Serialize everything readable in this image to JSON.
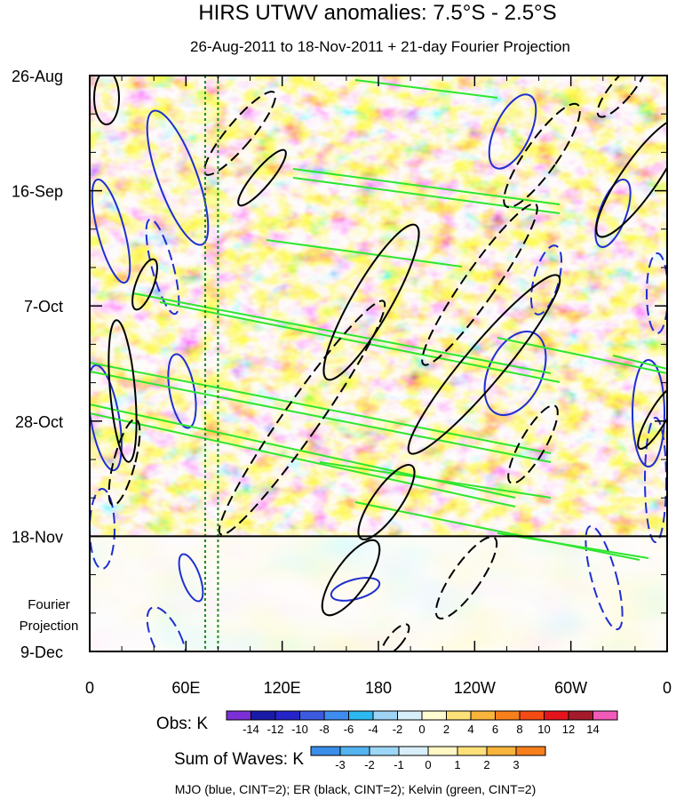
{
  "chart_data": {
    "type": "heatmap",
    "title": "HIRS UTWV anomalies: 7.5°S - 2.5°S",
    "subtitle": "26-Aug-2011 to 18-Nov-2011 + 21-day Fourier Projection",
    "x_ticks": [
      "0",
      "60E",
      "120E",
      "180",
      "120W",
      "60W",
      "0"
    ],
    "x_tick_values": [
      0,
      60,
      120,
      180,
      240,
      300,
      360
    ],
    "xlim": [
      0,
      360
    ],
    "y_ticks": [
      "26-Aug",
      "16-Sep",
      "7-Oct",
      "28-Oct",
      "18-Nov",
      "9-Dec"
    ],
    "y_tick_days": [
      0,
      21,
      42,
      63,
      84,
      105
    ],
    "ylim_days": [
      0,
      105
    ],
    "obs_end_day": 84,
    "projection_label_line1": "Fourier",
    "projection_label_line2": "Projection",
    "reference_longitudes_dotted": [
      72,
      80
    ],
    "obs_colorbar": {
      "label": "Obs: K",
      "levels": [
        "-14",
        "-12",
        "-10",
        "-8",
        "-6",
        "-4",
        "-2",
        "0",
        "2",
        "4",
        "6",
        "8",
        "10",
        "12",
        "14"
      ],
      "colors": [
        "#7b2fd6",
        "#1a1aa8",
        "#2424c8",
        "#3c5ae0",
        "#3f8cf0",
        "#2cb8f0",
        "#9fd3f5",
        "#d6effa",
        "#fffbd0",
        "#fde27a",
        "#f9b43c",
        "#f77f1c",
        "#f54a14",
        "#e4141a",
        "#a31a2a",
        "#f15ab8"
      ]
    },
    "waves_colorbar": {
      "label": "Sum of Waves: K",
      "levels": [
        "-3",
        "-2",
        "-1",
        "0",
        "1",
        "2",
        "3"
      ],
      "colors": [
        "#3a8ee8",
        "#54b4f0",
        "#9ed6f6",
        "#d8eefa",
        "#fff7c4",
        "#fde07a",
        "#f9b43c",
        "#f77f1c"
      ]
    },
    "contours_legend": "MJO (blue, CINT=2); ER (black, CINT=2); Kelvin (green, CINT=2)",
    "series_colors": {
      "mjo": "#1f2fd0",
      "er": "#000000",
      "kelvin": "#2ee62e"
    }
  }
}
